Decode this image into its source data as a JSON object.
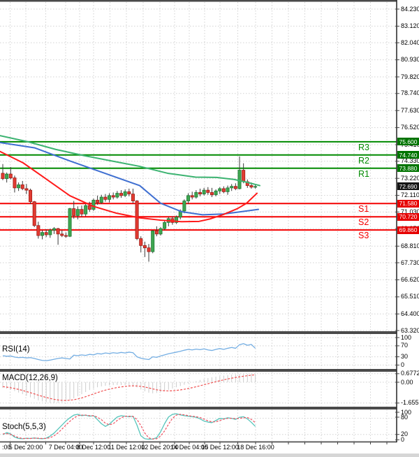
{
  "colors": {
    "background": "#ffffff",
    "grid": "#d2d2d2",
    "separator": "#4a4a4a",
    "axis_line": "#222222",
    "text": "#000000",
    "candle_up_fill": "#3fa650",
    "candle_up_stroke": "#1e7a35",
    "candle_down_fill": "#e23b32",
    "candle_down_stroke": "#9e1c16",
    "wick": "#3a3a3a",
    "resistance_line": "#008a00",
    "support_line": "#f40000",
    "resistance_badge": "#007400",
    "support_badge": "#e60000",
    "price_badge": "#151515",
    "badge_text": "#ffffff",
    "ma_slow_green": "#3cb371",
    "ma_mid_blue": "#3f6fd1",
    "ma_fast_red": "#ff1a1a",
    "rsi_line": "#74aee3",
    "macd_hist": "#cccccc",
    "macd_signal": "#f05050",
    "stoch_k": "#56c5bb",
    "stoch_d": "#f05060",
    "footer_bar": "#d6d6d6"
  },
  "chart_data": {
    "type": "candlestick",
    "timeframe_hint": "H4",
    "price_axis": {
      "range": [
        63.32,
        84.23
      ],
      "tick_labels": [
        "84.230",
        "83.120",
        "82.040",
        "80.930",
        "79.820",
        "78.740",
        "77.630",
        "76.520",
        "75.410",
        "74.330",
        "73.220",
        "72.110",
        "71.030",
        "69.950",
        "68.810",
        "67.730",
        "66.620",
        "65.510",
        "64.400",
        "63.320"
      ]
    },
    "x_axis": {
      "tick_labels": [
        ":00",
        "5 Dec 20:00",
        "7 Dec 04:00",
        "8 Dec 12:00",
        "11 Dec 12:00",
        "12 Dec 20:00",
        "14 Dec 04:00",
        "15 Dec 12:00",
        "18 Dec 16:00"
      ]
    },
    "levels": [
      {
        "name": "R3",
        "value": 75.6,
        "label": "75.600",
        "type": "resistance"
      },
      {
        "name": "R2",
        "value": 74.74,
        "label": "74.740",
        "type": "resistance"
      },
      {
        "name": "R1",
        "value": 73.88,
        "label": "73.880",
        "type": "resistance"
      },
      {
        "name": "S1",
        "value": 71.58,
        "label": "71.580",
        "type": "support"
      },
      {
        "name": "S2",
        "value": 70.72,
        "label": "70.720",
        "type": "support"
      },
      {
        "name": "S3",
        "value": 69.86,
        "label": "69.860",
        "type": "support"
      }
    ],
    "current_price": {
      "value": 72.69,
      "label": "72.690"
    },
    "candles_ohlc": [
      [
        73.55,
        74.15,
        73.1,
        73.2
      ],
      [
        73.2,
        73.6,
        72.95,
        73.5
      ],
      [
        73.5,
        73.95,
        73.15,
        73.25
      ],
      [
        73.25,
        73.4,
        72.3,
        72.6
      ],
      [
        72.6,
        72.95,
        72.4,
        72.8
      ],
      [
        72.8,
        73.05,
        72.45,
        72.55
      ],
      [
        72.55,
        72.85,
        72.2,
        72.45
      ],
      [
        72.45,
        72.55,
        71.55,
        71.7
      ],
      [
        71.7,
        71.75,
        70.05,
        70.15
      ],
      [
        70.15,
        70.4,
        69.3,
        69.5
      ],
      [
        69.5,
        69.85,
        69.25,
        69.7
      ],
      [
        69.7,
        69.9,
        69.4,
        69.55
      ],
      [
        69.55,
        69.95,
        69.35,
        69.85
      ],
      [
        69.85,
        70.05,
        69.6,
        69.95
      ],
      [
        69.95,
        70.0,
        68.9,
        69.6
      ],
      [
        69.6,
        69.85,
        69.4,
        69.5
      ],
      [
        69.5,
        69.7,
        69.35,
        69.45
      ],
      [
        69.45,
        71.3,
        69.4,
        71.25
      ],
      [
        71.25,
        71.75,
        70.6,
        70.8
      ],
      [
        70.8,
        71.4,
        70.55,
        71.2
      ],
      [
        71.2,
        71.45,
        70.7,
        70.9
      ],
      [
        70.9,
        71.55,
        70.75,
        71.45
      ],
      [
        71.45,
        71.7,
        71.05,
        71.2
      ],
      [
        71.2,
        71.9,
        71.1,
        71.8
      ],
      [
        71.8,
        72.1,
        71.5,
        71.65
      ],
      [
        71.65,
        72.15,
        71.55,
        72.0
      ],
      [
        72.0,
        72.2,
        71.7,
        71.85
      ],
      [
        71.85,
        72.25,
        71.65,
        72.1
      ],
      [
        72.1,
        72.3,
        71.85,
        72.0
      ],
      [
        72.0,
        72.4,
        71.9,
        72.25
      ],
      [
        72.25,
        72.45,
        71.95,
        72.1
      ],
      [
        72.1,
        72.5,
        72.0,
        72.35
      ],
      [
        72.35,
        72.55,
        72.05,
        72.2
      ],
      [
        72.2,
        72.55,
        71.6,
        71.75
      ],
      [
        71.75,
        71.8,
        69.2,
        69.3
      ],
      [
        69.3,
        69.45,
        68.4,
        68.85
      ],
      [
        68.85,
        69.1,
        68.1,
        68.7
      ],
      [
        68.7,
        68.95,
        67.8,
        68.45
      ],
      [
        68.45,
        69.85,
        68.35,
        69.8
      ],
      [
        69.8,
        70.1,
        69.45,
        69.6
      ],
      [
        69.6,
        70.05,
        69.5,
        69.95
      ],
      [
        69.95,
        70.45,
        69.85,
        70.35
      ],
      [
        70.35,
        70.72,
        70.1,
        70.6
      ],
      [
        70.6,
        70.75,
        70.2,
        70.35
      ],
      [
        70.35,
        70.8,
        70.25,
        70.7
      ],
      [
        70.7,
        71.2,
        70.55,
        71.1
      ],
      [
        71.1,
        71.85,
        70.95,
        71.75
      ],
      [
        71.75,
        72.25,
        71.55,
        72.1
      ],
      [
        72.1,
        72.35,
        71.85,
        72.0
      ],
      [
        72.0,
        72.45,
        71.9,
        72.3
      ],
      [
        72.3,
        72.55,
        72.05,
        72.2
      ],
      [
        72.2,
        72.6,
        72.1,
        72.45
      ],
      [
        72.45,
        72.65,
        72.15,
        72.3
      ],
      [
        72.3,
        72.6,
        72.0,
        72.15
      ],
      [
        72.15,
        72.5,
        72.05,
        72.4
      ],
      [
        72.4,
        72.65,
        72.2,
        72.55
      ],
      [
        72.55,
        72.7,
        72.25,
        72.35
      ],
      [
        72.35,
        72.75,
        72.15,
        72.6
      ],
      [
        72.6,
        72.85,
        72.4,
        72.7
      ],
      [
        72.7,
        72.9,
        72.45,
        72.55
      ],
      [
        72.55,
        74.65,
        72.5,
        73.75
      ],
      [
        73.75,
        74.2,
        72.9,
        73.0
      ],
      [
        73.0,
        73.15,
        72.6,
        72.75
      ],
      [
        72.75,
        72.95,
        72.55,
        72.65
      ],
      [
        72.65,
        72.85,
        72.55,
        72.69
      ]
    ],
    "moving_averages": [
      {
        "name": "ma-slow-green",
        "points": [
          [
            0,
            76.0
          ],
          [
            40,
            75.6
          ],
          [
            80,
            75.1
          ],
          [
            120,
            74.7
          ],
          [
            160,
            74.35
          ],
          [
            200,
            74.0
          ],
          [
            240,
            73.55
          ],
          [
            280,
            73.3
          ],
          [
            310,
            73.28
          ],
          [
            335,
            73.15
          ],
          [
            355,
            72.95
          ],
          [
            372,
            72.75
          ]
        ]
      },
      {
        "name": "ma-mid-blue",
        "points": [
          [
            0,
            75.55
          ],
          [
            50,
            75.2
          ],
          [
            100,
            74.35
          ],
          [
            150,
            73.55
          ],
          [
            200,
            72.75
          ],
          [
            230,
            71.6
          ],
          [
            260,
            71.05
          ],
          [
            290,
            70.85
          ],
          [
            320,
            70.9
          ],
          [
            345,
            71.05
          ],
          [
            370,
            71.2
          ]
        ]
      },
      {
        "name": "ma-fast-red",
        "points": [
          [
            0,
            74.97
          ],
          [
            33,
            74.23
          ],
          [
            67,
            73.15
          ],
          [
            100,
            72.09
          ],
          [
            133,
            71.41
          ],
          [
            167,
            70.95
          ],
          [
            200,
            70.65
          ],
          [
            230,
            70.5
          ],
          [
            260,
            70.4
          ],
          [
            285,
            70.42
          ],
          [
            300,
            70.57
          ],
          [
            320,
            70.87
          ],
          [
            340,
            71.25
          ],
          [
            353,
            71.6
          ],
          [
            368,
            72.25
          ]
        ]
      }
    ],
    "rsi": {
      "label": "RSI(14)",
      "tick_labels": [
        "100",
        "70",
        "30",
        "0"
      ],
      "range": [
        0,
        100
      ],
      "values": [
        34,
        32,
        33,
        29,
        27,
        28,
        26,
        27,
        24,
        20,
        17,
        16,
        18,
        21,
        24,
        26,
        24,
        22,
        36,
        34,
        37,
        35,
        39,
        37,
        42,
        40,
        44,
        42,
        45,
        43,
        46,
        44,
        47,
        45,
        30,
        25,
        22,
        20,
        30,
        28,
        33,
        37,
        41,
        44,
        47,
        50,
        54,
        57,
        55,
        58,
        56,
        59,
        55,
        53,
        57,
        60,
        57,
        61,
        64,
        61,
        74,
        78,
        72,
        75,
        61
      ]
    },
    "macd": {
      "label": "MACD(12,26,9)",
      "tick_labels": [
        "0.6772",
        "0.00",
        "-1.655"
      ],
      "range": [
        -1.655,
        0.6772
      ],
      "histogram": [
        -0.45,
        -0.52,
        -0.6,
        -0.7,
        -0.82,
        -0.95,
        -1.08,
        -1.2,
        -1.32,
        -1.44,
        -1.53,
        -1.6,
        -1.64,
        -1.655,
        -1.64,
        -1.6,
        -1.52,
        -1.42,
        -1.28,
        -1.12,
        -0.95,
        -0.78,
        -0.62,
        -0.5,
        -0.4,
        -0.33,
        -0.28,
        -0.25,
        -0.23,
        -0.22,
        -0.22,
        -0.23,
        -0.25,
        -0.3,
        -0.42,
        -0.58,
        -0.72,
        -0.83,
        -0.88,
        -0.85,
        -0.78,
        -0.7,
        -0.6,
        -0.5,
        -0.4,
        -0.3,
        -0.2,
        -0.1,
        0.0,
        0.09,
        0.18,
        0.26,
        0.33,
        0.39,
        0.44,
        0.49,
        0.53,
        0.57,
        0.6,
        0.63,
        0.65,
        0.66,
        0.67,
        0.677,
        0.665
      ],
      "signal": [
        -0.35,
        -0.39,
        -0.44,
        -0.5,
        -0.57,
        -0.65,
        -0.74,
        -0.83,
        -0.93,
        -1.03,
        -1.12,
        -1.21,
        -1.29,
        -1.36,
        -1.41,
        -1.44,
        -1.45,
        -1.43,
        -1.39,
        -1.33,
        -1.25,
        -1.15,
        -1.04,
        -0.93,
        -0.82,
        -0.72,
        -0.63,
        -0.55,
        -0.48,
        -0.42,
        -0.37,
        -0.33,
        -0.3,
        -0.29,
        -0.3,
        -0.33,
        -0.38,
        -0.45,
        -0.53,
        -0.6,
        -0.65,
        -0.68,
        -0.69,
        -0.68,
        -0.65,
        -0.61,
        -0.56,
        -0.5,
        -0.43,
        -0.36,
        -0.28,
        -0.2,
        -0.12,
        -0.04,
        0.04,
        0.12,
        0.19,
        0.26,
        0.32,
        0.38,
        0.43,
        0.48,
        0.52,
        0.56,
        0.59
      ]
    },
    "stoch": {
      "label": "Stoch(5,5,3)",
      "tick_labels": [
        "100",
        "80",
        "20",
        "0"
      ],
      "range": [
        0,
        100
      ],
      "k": [
        19,
        27,
        22,
        10,
        5,
        4,
        6,
        5,
        7,
        5,
        4,
        6,
        14,
        25,
        40,
        55,
        70,
        82,
        92,
        95,
        90,
        92,
        88,
        90,
        75,
        60,
        50,
        58,
        72,
        85,
        90,
        88,
        86,
        88,
        55,
        15,
        4,
        2,
        3,
        8,
        30,
        60,
        85,
        95,
        97,
        93,
        90,
        88,
        86,
        84,
        78,
        70,
        66,
        64,
        72,
        80,
        78,
        82,
        80,
        76,
        84,
        86,
        78,
        65,
        50
      ],
      "d": [
        22,
        23,
        20,
        14,
        8,
        5,
        5,
        5,
        6,
        6,
        5,
        5,
        8,
        15,
        26,
        40,
        55,
        69,
        81,
        90,
        92,
        92,
        90,
        90,
        84,
        75,
        62,
        56,
        60,
        72,
        82,
        88,
        88,
        87,
        76,
        53,
        25,
        7,
        3,
        4,
        14,
        33,
        58,
        80,
        92,
        95,
        93,
        90,
        88,
        86,
        83,
        77,
        71,
        67,
        67,
        72,
        77,
        80,
        80,
        79,
        80,
        82,
        83,
        76,
        64
      ]
    }
  }
}
